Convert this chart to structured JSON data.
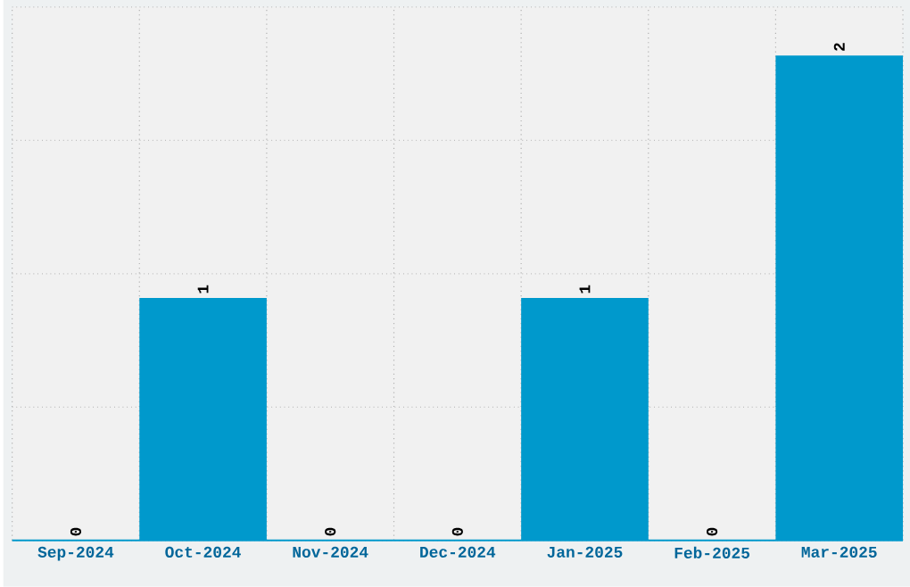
{
  "chart_data": {
    "type": "bar",
    "categories": [
      "Sep-2024",
      "Oct-2024",
      "Nov-2024",
      "Dec-2024",
      "Jan-2025",
      "Feb-2025",
      "Mar-2025"
    ],
    "values": [
      0,
      1,
      0,
      0,
      1,
      0,
      2
    ],
    "color": "#0099cc",
    "ylim": [
      0,
      2.2
    ],
    "yticks": [
      {
        "value": 0,
        "label": null
      },
      {
        "value": 0.55,
        "label": null
      },
      {
        "value": 1.1,
        "label": null
      },
      {
        "value": 1.65,
        "label": null
      },
      {
        "value": 2.2,
        "label": null
      }
    ],
    "tick_labels": "x",
    "grid": true,
    "data_labels": true
  }
}
